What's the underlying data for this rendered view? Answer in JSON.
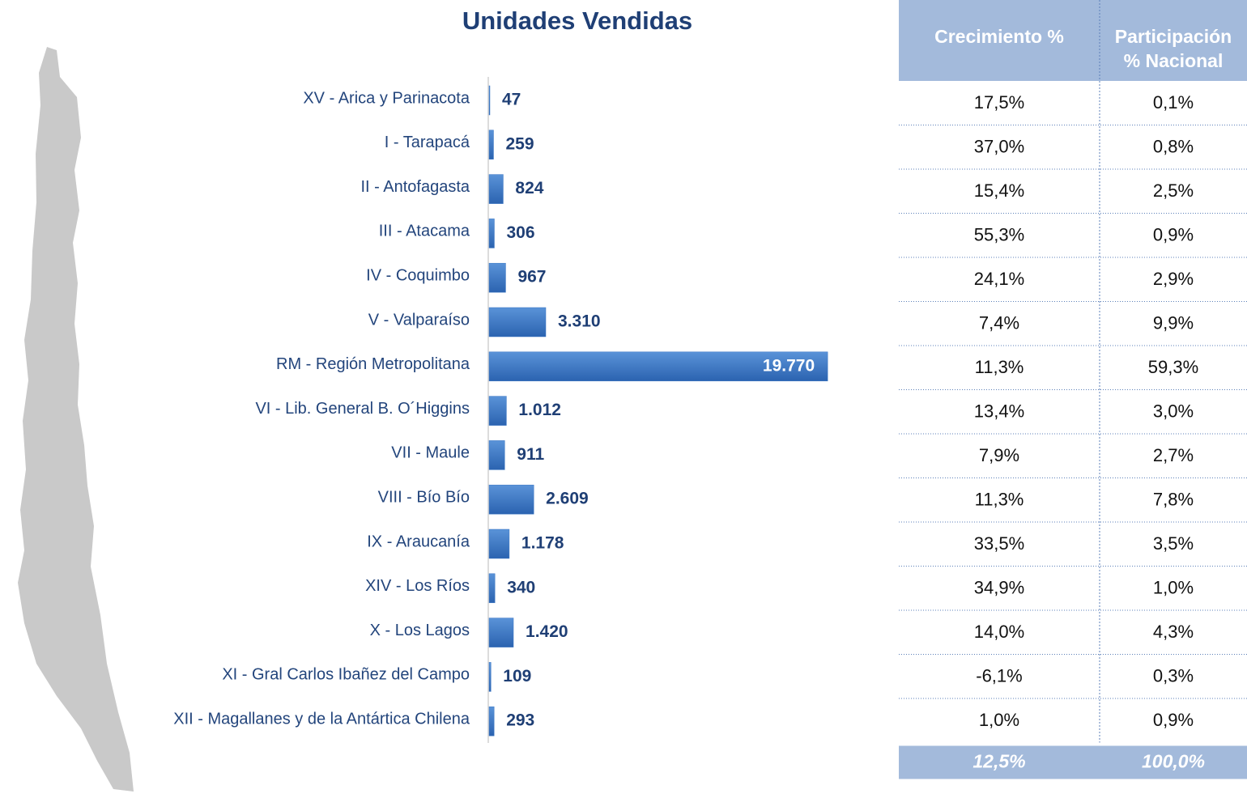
{
  "chart_data": {
    "type": "hbar",
    "title": "Unidades Vendidas",
    "categories": [
      "XV - Arica y Parinacota",
      "I - Tarapacá",
      "II - Antofagasta",
      "III - Atacama",
      "IV - Coquimbo",
      "V - Valparaíso",
      "RM - Región Metropolitana",
      "VI - Lib. General B. O´Higgins",
      "VII - Maule",
      "VIII - Bío Bío",
      "IX - Araucanía",
      "XIV - Los Ríos",
      "X - Los Lagos",
      "XI - Gral Carlos Ibañez del Campo",
      "XII - Magallanes y de la Antártica Chilena"
    ],
    "values": [
      47,
      259,
      824,
      306,
      967,
      3310,
      19770,
      1012,
      911,
      2609,
      1178,
      340,
      1420,
      109,
      293
    ],
    "value_labels": [
      "47",
      "259",
      "824",
      "306",
      "967",
      "3.310",
      "19.770",
      "1.012",
      "911",
      "2.609",
      "1.178",
      "340",
      "1.420",
      "109",
      "293"
    ],
    "color": "#3a76c4",
    "xlim": [
      0,
      20000
    ]
  },
  "table": {
    "headers": [
      [
        "Crecimiento %"
      ],
      [
        "Participación",
        "% Nacional"
      ]
    ],
    "rows": [
      [
        "17,5%",
        "0,1%"
      ],
      [
        "37,0%",
        "0,8%"
      ],
      [
        "15,4%",
        "2,5%"
      ],
      [
        "55,3%",
        "0,9%"
      ],
      [
        "24,1%",
        "2,9%"
      ],
      [
        "7,4%",
        "9,9%"
      ],
      [
        "11,3%",
        "59,3%"
      ],
      [
        "13,4%",
        "3,0%"
      ],
      [
        "7,9%",
        "2,7%"
      ],
      [
        "11,3%",
        "7,8%"
      ],
      [
        "33,5%",
        "3,5%"
      ],
      [
        "34,9%",
        "1,0%"
      ],
      [
        "14,0%",
        "4,3%"
      ],
      [
        "-6,1%",
        "0,3%"
      ],
      [
        "1,0%",
        "0,9%"
      ]
    ],
    "total": [
      "12,5%",
      "100,0%"
    ]
  }
}
